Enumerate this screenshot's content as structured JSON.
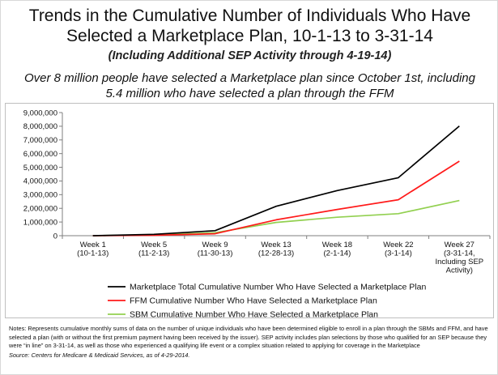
{
  "title": {
    "line1": "Trends in the Cumulative Number of Individuals Who Have",
    "line2": "Selected a Marketplace Plan, 10-1-13 to 3-31-14"
  },
  "subtitle": "(Including Additional SEP Activity through 4-19-14)",
  "headline": {
    "line1": "Over 8 million people have selected a Marketplace plan since October 1st, including",
    "line2": "5.4 million who have selected a plan through the FFM"
  },
  "chart_data": {
    "type": "line",
    "categories": [
      [
        "Week 1",
        "(10-1-13)"
      ],
      [
        "Week 5",
        "(11-2-13)"
      ],
      [
        "Week 9",
        "(11-30-13)"
      ],
      [
        "Week 13",
        "(12-28-13)"
      ],
      [
        "Week 18",
        "(2-1-14)"
      ],
      [
        "Week 22",
        "(3-1-14)"
      ],
      [
        "Week 27",
        "(3-31-14,",
        "Including SEP",
        "Activity)"
      ]
    ],
    "y_ticks": [
      "0",
      "1,000,000",
      "2,000,000",
      "3,000,000",
      "4,000,000",
      "5,000,000",
      "6,000,000",
      "7,000,000",
      "8,000,000",
      "9,000,000"
    ],
    "ylim": [
      0,
      9000000
    ],
    "grid": false,
    "legend_position": "bottom",
    "series": [
      {
        "name": "Marketplace Total Cumulative Number Who Have Selected a Marketplace Plan",
        "color": "#000000",
        "values": [
          0,
          100000,
          365000,
          2150000,
          3300000,
          4240000,
          8020000
        ]
      },
      {
        "name": "FFM Cumulative Number Who Have Selected a Marketplace Plan",
        "color": "#ff1a1a",
        "values": [
          0,
          30000,
          140000,
          1160000,
          1920000,
          2630000,
          5450000
        ]
      },
      {
        "name": "SBM Cumulative Number Who Have Selected a Marketplace Plan",
        "color": "#92d050",
        "values": [
          0,
          65000,
          220000,
          970000,
          1350000,
          1610000,
          2570000
        ]
      }
    ]
  },
  "notes": {
    "text": "Notes:  Represents cumulative monthly sums of data on the number of unique individuals who have been determined eligible to enroll in a plan through the SBMs and FFM, and have selected a plan (with or without the first premium payment having been received by the issuer). SEP activity includes plan selections by those who qualified for an SEP because they were “in line” on 3-31-14, as well as those who experienced a qualifying life event or a complex situation related to applying for coverage in the Marketplace",
    "source": "Source:  Centers for Medicare & Medicaid Services, as of 4-29-2014."
  }
}
